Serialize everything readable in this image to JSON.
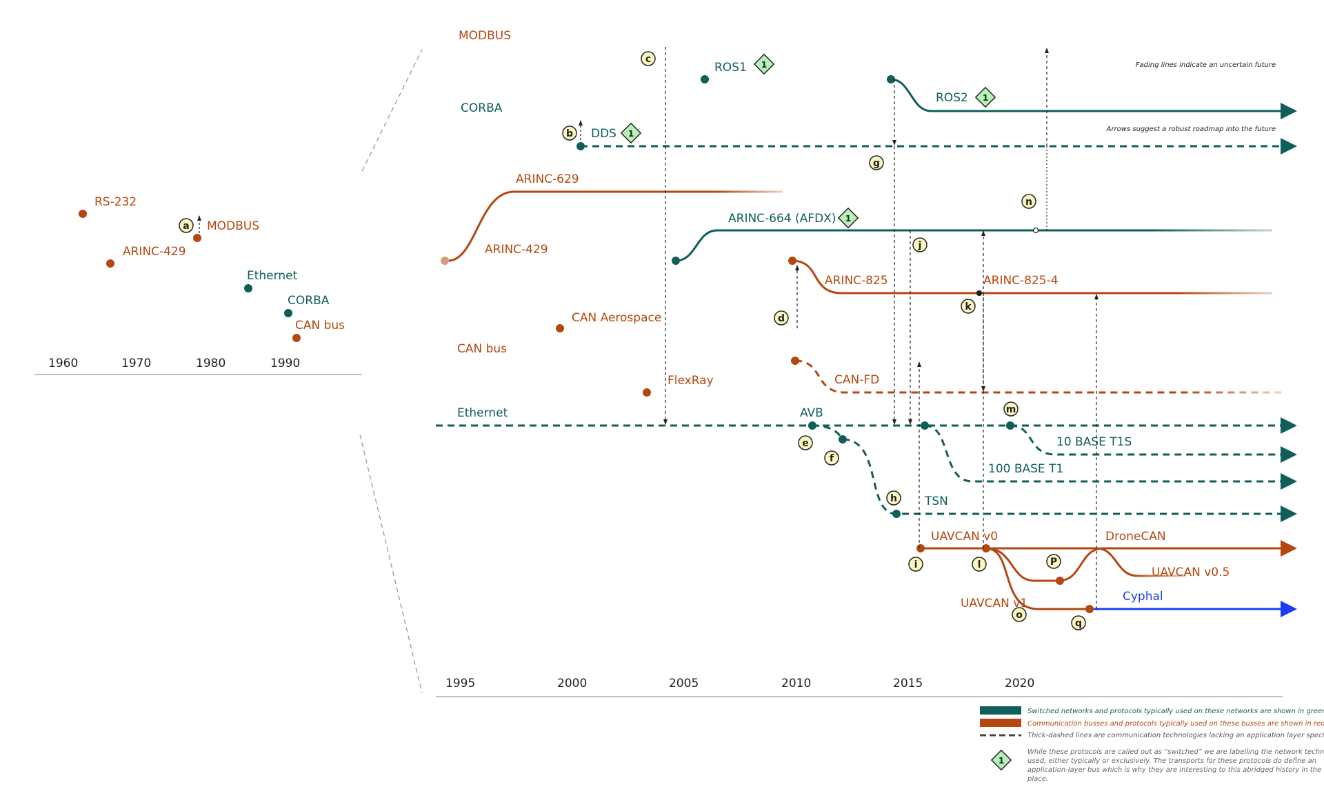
{
  "colors": {
    "red": "#b5460f",
    "green": "#0f5e58",
    "blue": "#1a3df2",
    "marker": "#fbf6be",
    "diamond": "#b6f2b8",
    "dark": "#222222",
    "grey": "#999999"
  },
  "inset": {
    "items": [
      {
        "label": "RS-232",
        "color": "red"
      },
      {
        "label": "MODBUS",
        "color": "red"
      },
      {
        "label": "ARINC-429",
        "color": "red"
      },
      {
        "label": "Ethernet",
        "color": "green"
      },
      {
        "label": "CORBA",
        "color": "green"
      },
      {
        "label": "CAN bus",
        "color": "red"
      }
    ],
    "years": [
      "1960",
      "1970",
      "1980",
      "1990"
    ],
    "marker": "a"
  },
  "main": {
    "years": [
      "1995",
      "2000",
      "2005",
      "2010",
      "2015",
      "2020"
    ],
    "labels": {
      "modbus": "MODBUS",
      "ros1": "ROS1",
      "ros2": "ROS2",
      "corba": "CORBA",
      "dds": "DDS",
      "arinc629": "ARINC-629",
      "arinc664": "ARINC-664 (AFDX)",
      "arinc429": "ARINC-429",
      "arinc825": "ARINC-825",
      "arinc8254": "ARINC-825-4",
      "canaero": "CAN Aerospace",
      "canbus": "CAN bus",
      "canfd": "CAN-FD",
      "flexray": "FlexRay",
      "ethernet": "Ethernet",
      "avb": "AVB",
      "t1s": "10 BASE T1S",
      "t1": "100 BASE T1",
      "tsn": "TSN",
      "uavcan0": "UAVCAN v0",
      "dronecan": "DroneCAN",
      "uavcan05": "UAVCAN v0.5",
      "uavcan1": "UAVCAN v1",
      "cyphal": "Cyphal"
    },
    "markers": [
      "b",
      "c",
      "d",
      "e",
      "f",
      "g",
      "h",
      "i",
      "j",
      "k",
      "l",
      "m",
      "n",
      "o",
      "P",
      "q"
    ],
    "diamond_value": "1",
    "notes": {
      "fading": "Fading lines indicate an uncertain future",
      "arrows": "Arrows suggest a robust roadmap into the future"
    }
  },
  "legend": {
    "green": "Switched networks and protocols typically used on these networks are shown in green",
    "red": "Communication busses and protocols typically used on these busses are shown in red",
    "dashed": "Thick-dashed lines are communication technologies lacking an application layer specification",
    "diamond": [
      "While these protocols are called out as “switched” we are labelling the network technology",
      "used, either typically or exclusively. The transports for these protocols do define an",
      "application-layer bus which is why they are interesting to this abridged history in the first",
      "place."
    ]
  }
}
